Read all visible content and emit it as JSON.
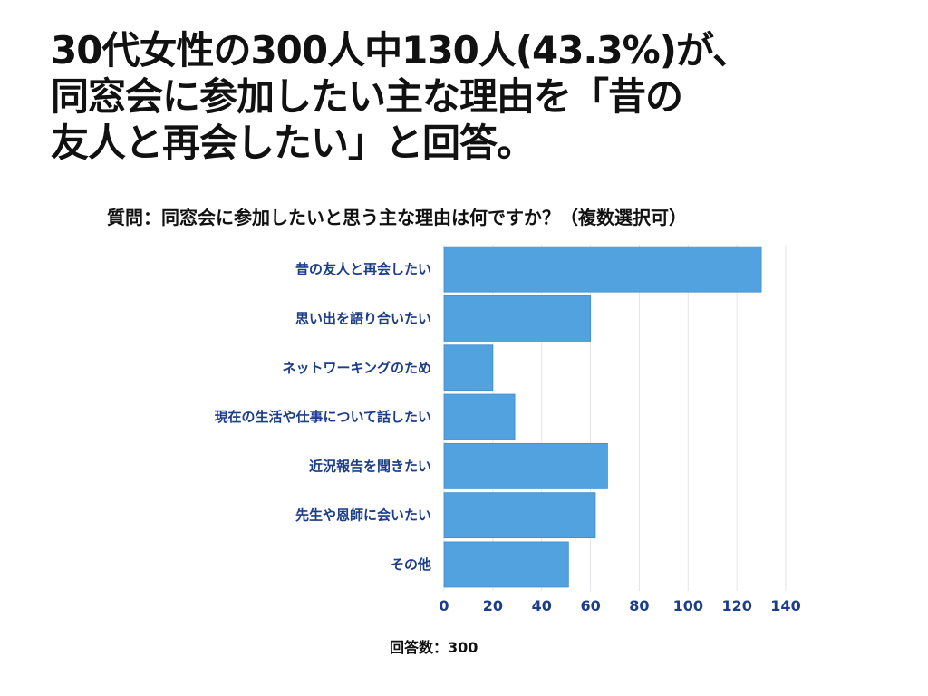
{
  "headline": {
    "line1": "30代女性の300人中130人(43.3%)が、",
    "line2": "同窓会に参加したい主な理由を「昔の",
    "line3": "友人と再会したい」と回答。"
  },
  "question": "質問：同窓会に参加したいと思う主な理由は何ですか？（複数選択可）",
  "footnote": "回答数：300",
  "colors": {
    "bar": "#52a2e0",
    "category_label": "#1c3d8a",
    "tick_label": "#1c3d8a",
    "grid": "#e1e5ea",
    "text": "#111111"
  },
  "chart_data": {
    "type": "bar",
    "orientation": "horizontal",
    "title": "質問：同窓会に参加したいと思う主な理由は何ですか？（複数選択可）",
    "xlabel": "",
    "ylabel": "",
    "categories": [
      "昔の友人と再会したい",
      "思い出を語り合いたい",
      "ネットワーキングのため",
      "現在の生活や仕事について話したい",
      "近況報告を聞きたい",
      "先生や恩師に会いたい",
      "その他"
    ],
    "values": [
      130,
      60,
      20,
      29,
      67,
      62,
      51
    ],
    "xlim": [
      0,
      140
    ],
    "xticks": [
      0,
      20,
      40,
      60,
      80,
      100,
      120,
      140
    ],
    "grid": true,
    "legend": "none"
  }
}
